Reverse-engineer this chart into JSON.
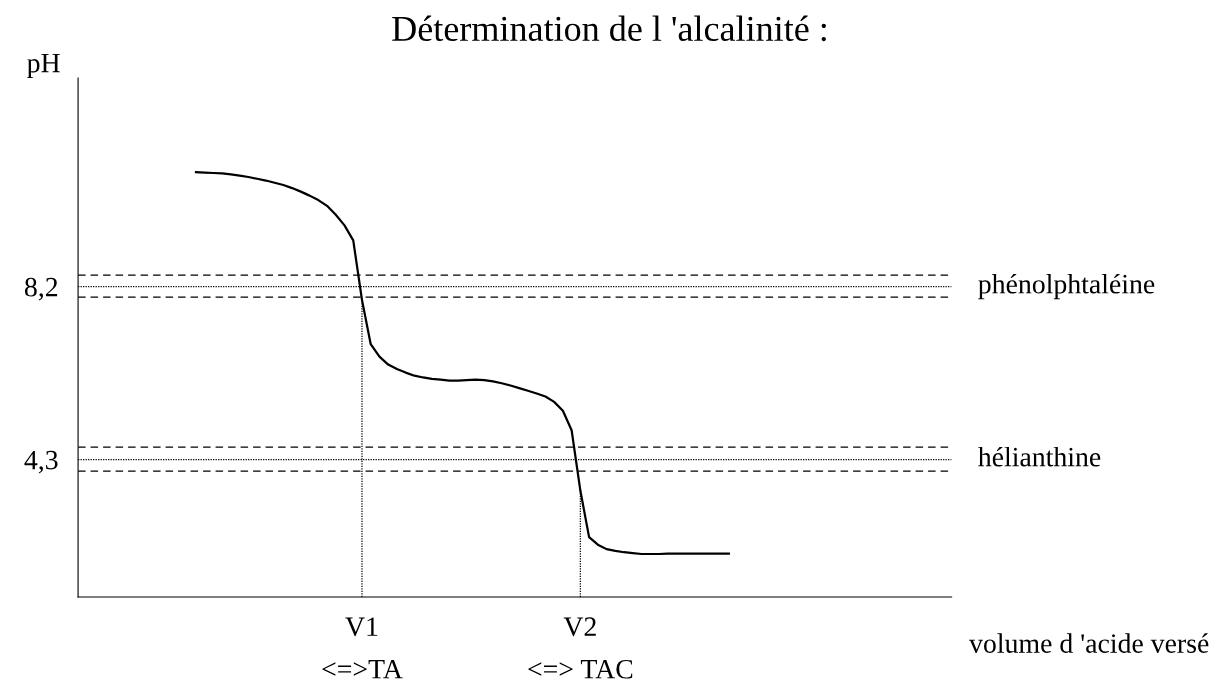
{
  "chart_data": {
    "type": "line",
    "title": "Détermination de l 'alcalinité :",
    "xlabel": "volume d 'acide versé",
    "ylabel": "pH",
    "categories": [
      null,
      null,
      null,
      null,
      null,
      null,
      null,
      null,
      null,
      null,
      null,
      null,
      null,
      null,
      null,
      null,
      null,
      null,
      null,
      null,
      null,
      null,
      null,
      null,
      null,
      null,
      null,
      null,
      null,
      null,
      null,
      null,
      "V1\n<=>TA",
      null,
      null,
      null,
      null,
      null,
      null,
      null,
      null,
      null,
      null,
      null,
      null,
      null,
      null,
      null,
      null,
      null,
      null,
      null,
      null,
      null,
      null,
      null,
      null,
      "V2\n<=> TAC",
      null,
      null,
      null,
      null,
      null,
      null,
      null,
      null,
      null,
      null,
      null,
      null,
      null,
      null,
      null,
      null,
      null,
      null,
      null,
      null,
      null,
      null,
      null,
      null,
      null,
      null,
      null,
      null,
      null,
      null,
      null,
      null,
      null,
      null,
      null,
      null,
      null,
      null,
      null,
      null,
      null,
      null
    ],
    "series": [
      {
        "color": "#000000",
        "values": [
          null,
          null,
          null,
          null,
          null,
          null,
          null,
          null,
          null,
          null,
          null,
          null,
          null,
          10.78,
          10.77,
          10.76,
          10.75,
          10.73,
          10.7,
          10.67,
          10.63,
          10.59,
          10.54,
          10.49,
          10.42,
          10.34,
          10.25,
          10.15,
          10.02,
          9.82,
          9.58,
          9.24,
          7.9,
          6.9,
          6.62,
          6.44,
          6.34,
          6.26,
          6.19,
          6.15,
          6.12,
          6.1,
          6.08,
          6.08,
          6.09,
          6.1,
          6.09,
          6.06,
          6.02,
          5.97,
          5.91,
          5.85,
          5.79,
          5.72,
          5.6,
          5.4,
          4.96,
          3.6,
          2.55,
          2.38,
          2.28,
          2.24,
          2.21,
          2.19,
          2.17,
          2.17,
          2.17,
          2.18,
          2.18,
          2.18,
          2.18,
          2.18,
          2.18,
          2.18,
          2.18,
          null,
          null,
          null,
          null,
          null,
          null,
          null,
          null,
          null,
          null,
          null,
          null,
          null,
          null,
          null,
          null,
          null,
          null,
          null,
          null,
          null,
          null,
          null,
          null,
          null
        ]
      }
    ],
    "ylim": [
      1.2,
      12.9
    ],
    "yticks": [
      {
        "value": 8.2,
        "label": "8,2"
      },
      {
        "value": 4.3,
        "label": "4,3"
      }
    ],
    "ref_lines": [
      {
        "axis": "y",
        "value": 8.2,
        "label": "phénolphtaléine",
        "line_style": "dotted",
        "color": "#000000"
      },
      {
        "axis": "y",
        "value": 8.46,
        "line_style": "dashed",
        "color": "#000000"
      },
      {
        "axis": "y",
        "value": 7.96,
        "line_style": "dashed",
        "color": "#000000"
      },
      {
        "axis": "y",
        "value": 4.3,
        "label": "hélianthine",
        "line_style": "dotted",
        "color": "#000000"
      },
      {
        "axis": "y",
        "value": 4.58,
        "line_style": "dashed",
        "color": "#000000"
      },
      {
        "axis": "y",
        "value": 4.04,
        "line_style": "dashed",
        "color": "#000000"
      },
      {
        "axis": "x",
        "value": "V1\n<=>TA",
        "line_style": "dotted",
        "color": "#000000"
      },
      {
        "axis": "x",
        "value": "V2\n<=> TAC",
        "line_style": "dotted",
        "color": "#000000"
      }
    ],
    "grid": false,
    "legend": false,
    "marker": "none",
    "line_style": "solid"
  }
}
